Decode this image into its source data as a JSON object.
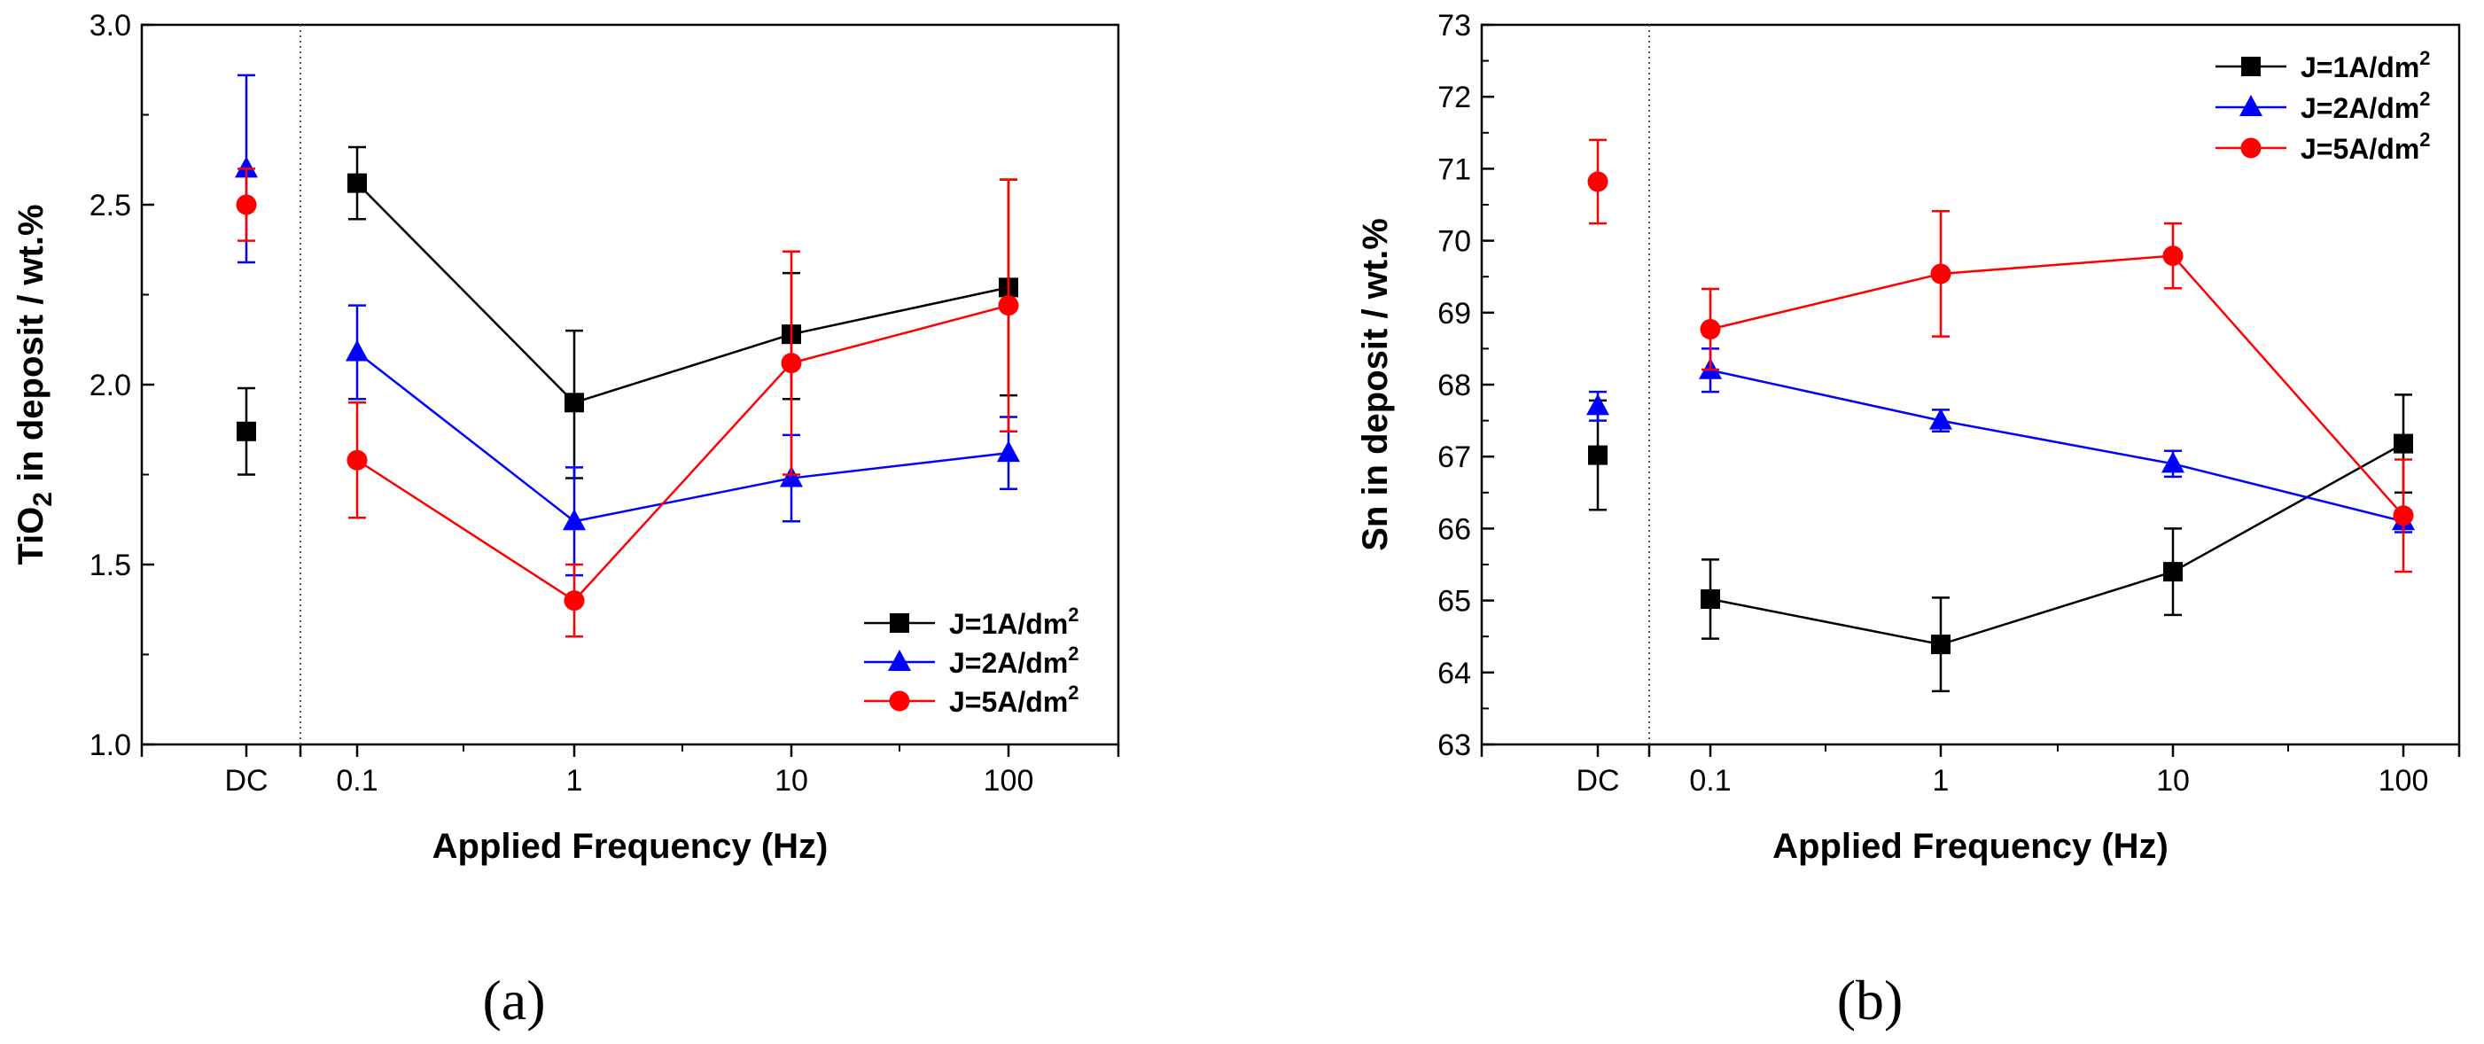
{
  "chart_data": [
    {
      "type": "line",
      "panel_label": "(a)",
      "ylabel": {
        "pre": "TiO",
        "sub": "2",
        "post": " in deposit / wt.%"
      },
      "xlabel": "Applied Frequency (Hz)",
      "ylim": [
        1.0,
        3.0
      ],
      "yticks": [
        "1.0",
        "1.5",
        "2.0",
        "2.5",
        "3.0"
      ],
      "categories": [
        "DC",
        "0.1",
        "1",
        "10",
        "100"
      ],
      "legend_position": "bottom-right",
      "series": [
        {
          "name": "J=1A/dm",
          "sup": "2",
          "color": "#000000",
          "marker": "square",
          "values": [
            1.87,
            2.56,
            1.95,
            2.14,
            2.27
          ],
          "err_low": [
            1.75,
            2.46,
            1.74,
            1.96,
            1.97
          ],
          "err_high": [
            1.99,
            2.66,
            2.15,
            2.31,
            2.57
          ]
        },
        {
          "name": "J=2A/dm",
          "sup": "2",
          "color": "#0000ff",
          "marker": "triangle",
          "values": [
            2.6,
            2.09,
            1.62,
            1.74,
            1.81
          ],
          "err_low": [
            2.34,
            1.96,
            1.47,
            1.62,
            1.71
          ],
          "err_high": [
            2.86,
            2.22,
            1.77,
            1.86,
            1.91
          ]
        },
        {
          "name": "J=5A/dm",
          "sup": "2",
          "color": "#ff0000",
          "marker": "circle",
          "values": [
            2.5,
            1.79,
            1.4,
            2.06,
            2.22
          ],
          "err_low": [
            2.4,
            1.63,
            1.3,
            1.75,
            1.87
          ],
          "err_high": [
            2.6,
            1.95,
            1.5,
            2.37,
            2.57
          ]
        }
      ]
    },
    {
      "type": "line",
      "panel_label": "(b)",
      "ylabel": {
        "pre": "Sn in deposit / wt.%",
        "sub": "",
        "post": ""
      },
      "xlabel": "Applied Frequency (Hz)",
      "ylim": [
        63,
        73
      ],
      "yticks": [
        "63",
        "64",
        "65",
        "66",
        "67",
        "68",
        "69",
        "70",
        "71",
        "72",
        "73"
      ],
      "categories": [
        "DC",
        "0.1",
        "1",
        "10",
        "100"
      ],
      "legend_position": "top-right",
      "series": [
        {
          "name": "J=1A/dm",
          "sup": "2",
          "color": "#000000",
          "marker": "square",
          "values": [
            67.02,
            65.02,
            64.39,
            65.4,
            67.18
          ],
          "err_low": [
            66.26,
            64.47,
            63.74,
            64.8,
            66.5
          ],
          "err_high": [
            67.78,
            65.57,
            65.04,
            66.0,
            67.86
          ]
        },
        {
          "name": "J=2A/dm",
          "sup": "2",
          "color": "#0000ff",
          "marker": "triangle",
          "values": [
            67.7,
            68.2,
            67.5,
            66.9,
            66.1
          ],
          "err_low": [
            67.5,
            67.9,
            67.35,
            66.72,
            65.95
          ],
          "err_high": [
            67.9,
            68.5,
            67.65,
            67.08,
            66.25
          ]
        },
        {
          "name": "J=5A/dm",
          "sup": "2",
          "color": "#ff0000",
          "marker": "circle",
          "values": [
            70.82,
            68.77,
            69.54,
            69.79,
            66.18
          ],
          "err_low": [
            70.24,
            68.21,
            68.67,
            69.34,
            65.4
          ],
          "err_high": [
            71.4,
            69.33,
            70.41,
            70.24,
            66.96
          ]
        }
      ]
    }
  ]
}
